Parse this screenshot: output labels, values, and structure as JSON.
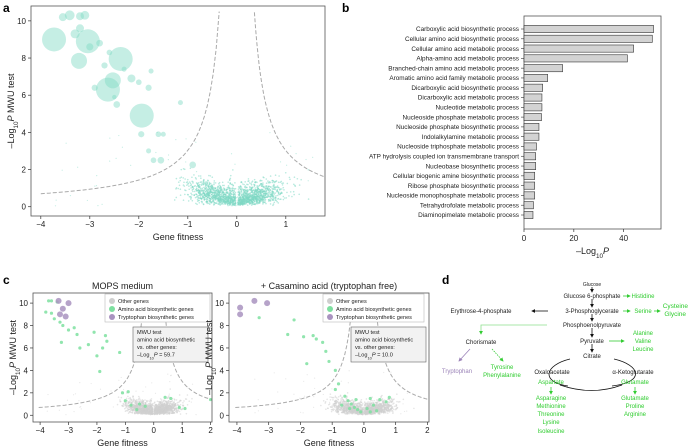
{
  "panel_labels": {
    "a": "a",
    "b": "b",
    "c": "c",
    "d": "d"
  },
  "colors": {
    "teal": "#7fd9c4",
    "green": "#7ee0a0",
    "purple": "#a993c0",
    "gray": "#cfcfcf",
    "bar": "#d3d3d3",
    "path_green": "#33cc33",
    "path_purple": "#9b83b8"
  },
  "ylabel": {
    "prefix": "–Log",
    "sub": "10",
    "var": "P",
    "suffix": " MWU test"
  },
  "chart_data": [
    {
      "id": "a",
      "type": "scatter",
      "xlabel": "Gene fitness",
      "xlim": [
        -4.2,
        1.8
      ],
      "ylim": [
        -0.5,
        10.8
      ],
      "xticks": [
        -4,
        -3,
        -2,
        -1,
        0,
        1
      ],
      "yticks": [
        0,
        2,
        4,
        6,
        8,
        10
      ],
      "threshold_curves": "dashed",
      "bubbles": [
        {
          "x": -3.73,
          "y": 9.0,
          "size": 9
        },
        {
          "x": -3.04,
          "y": 8.9,
          "size": 9
        },
        {
          "x": -2.37,
          "y": 7.95,
          "size": 9
        },
        {
          "x": -2.63,
          "y": 6.3,
          "size": 9
        },
        {
          "x": -1.94,
          "y": 4.9,
          "size": 9
        },
        {
          "x": -3.22,
          "y": 7.85,
          "size": 4
        },
        {
          "x": -2.53,
          "y": 6.8,
          "size": 4
        },
        {
          "x": -3.55,
          "y": 10.2,
          "size": 1
        },
        {
          "x": -3.41,
          "y": 10.3,
          "size": 1.5
        },
        {
          "x": -3.2,
          "y": 10.25,
          "size": 1
        },
        {
          "x": -3.1,
          "y": 10.3,
          "size": 1.2
        },
        {
          "x": -3.3,
          "y": 9.3,
          "size": 1.3
        },
        {
          "x": -3.2,
          "y": 9.6,
          "size": 1
        },
        {
          "x": -3.0,
          "y": 8.6,
          "size": 0.8
        },
        {
          "x": -2.8,
          "y": 8.8,
          "size": 0.7
        },
        {
          "x": -2.7,
          "y": 7.6,
          "size": 0.6
        },
        {
          "x": -2.6,
          "y": 8.3,
          "size": 0.5
        },
        {
          "x": -2.9,
          "y": 6.4,
          "size": 0.6
        },
        {
          "x": -2.45,
          "y": 5.5,
          "size": 0.7
        },
        {
          "x": -2.15,
          "y": 6.9,
          "size": 1
        },
        {
          "x": -2.0,
          "y": 6.7,
          "size": 0.5
        },
        {
          "x": -1.8,
          "y": 6.4,
          "size": 0.6
        },
        {
          "x": -1.75,
          "y": 7.3,
          "size": 0.4
        },
        {
          "x": -1.95,
          "y": 3.9,
          "size": 0.6
        },
        {
          "x": -1.6,
          "y": 3.9,
          "size": 0.5
        },
        {
          "x": -1.5,
          "y": 3.9,
          "size": 0.4
        },
        {
          "x": -1.8,
          "y": 3.0,
          "size": 0.4
        },
        {
          "x": -1.7,
          "y": 2.5,
          "size": 0.5
        },
        {
          "x": -1.55,
          "y": 2.5,
          "size": 0.7
        },
        {
          "x": -1.15,
          "y": 5.6,
          "size": 0.4
        },
        {
          "x": -0.9,
          "y": 2.25,
          "size": 0.7
        },
        {
          "x": -2.5,
          "y": 5.9,
          "size": 0.3
        },
        {
          "x": -2.3,
          "y": 7.4,
          "size": 0.4
        }
      ]
    },
    {
      "id": "b",
      "type": "bar",
      "orientation": "horizontal",
      "xlabel": {
        "prefix": "–Log",
        "sub": "10",
        "var": "P"
      },
      "xlim": [
        0,
        55
      ],
      "xticks": [
        0,
        20,
        40
      ],
      "categories": [
        "Carboxylic acid biosynthetic process",
        "Cellular amino acid biosynthetic process",
        "Cellular amino acid metabolic process",
        "Alpha-amino acid metabolic process",
        "Branched-chain amino acid metabolic process",
        "Aromatic amino acid family metabolic process",
        "Dicarboxylic acid biosynthetic process",
        "Dicarboxylic acid metabolic process",
        "Nucleotide metabolic process",
        "Nucleoside phosphate metabolic process",
        "Nucleoside phosphate biosynthetic process",
        "Indolalkylamine metabolic process",
        "Nucleoside triphosphate metabolic process",
        "ATP hydrolysis coupled ion transmembrane transport",
        "Nucleobase biosynthetic process",
        "Cellular biogenic amine biosynthetic process",
        "Ribose phosphate biosynthetic process",
        "Nucleoside monophosphate metabolic process",
        "Tetrahydrofolate metabolic process",
        "Diaminopimelate metabolic process"
      ],
      "values": [
        52,
        51.5,
        44,
        41.5,
        15.5,
        9.5,
        7.5,
        7.2,
        7.2,
        7,
        6,
        6,
        5,
        4.7,
        4.7,
        4.3,
        4.3,
        4.3,
        3.8,
        3.6
      ]
    },
    {
      "id": "c1",
      "type": "scatter",
      "title": "MOPS medium",
      "xlabel": "Gene fitness",
      "xlim": [
        -4.25,
        2.05
      ],
      "ylim": [
        -0.6,
        10.9
      ],
      "xticks": [
        -4,
        -3,
        -2,
        -1,
        0,
        1,
        2
      ],
      "yticks": [
        0,
        2,
        4,
        6,
        8,
        10
      ],
      "legend": [
        "Other genes",
        "Amino acid biosynthetic genes",
        "Tryptophan biosynthetic genes"
      ],
      "stat_box": [
        "MWU test",
        "amino acid biosynthetic",
        "vs. other genes:"
      ],
      "stat_value": {
        "prefix": "–Log",
        "sub": "10",
        "var": "P",
        "suffix": " = 59.7"
      },
      "amino_acid_points": [
        [
          -3.7,
          10.2
        ],
        [
          -3.6,
          10.2
        ],
        [
          -3.4,
          10.1
        ],
        [
          -3.8,
          9.2
        ],
        [
          -3.6,
          9.1
        ],
        [
          -3.5,
          8.6
        ],
        [
          -3.3,
          8.3
        ],
        [
          -3.2,
          8.0
        ],
        [
          -3.0,
          7.6
        ],
        [
          -2.8,
          7.8
        ],
        [
          -2.7,
          7.2
        ],
        [
          -3.25,
          6.5
        ],
        [
          -2.6,
          6.0
        ],
        [
          -2.3,
          6.3
        ],
        [
          -2.1,
          7.4
        ],
        [
          -1.7,
          7.1
        ],
        [
          -1.65,
          6.6
        ],
        [
          -1.8,
          6.0
        ],
        [
          -2.0,
          5.3
        ],
        [
          -1.2,
          5.6
        ],
        [
          -1.9,
          3.9
        ],
        [
          -1.0,
          1.3
        ],
        [
          -0.8,
          0.9
        ],
        [
          -0.5,
          1.0
        ],
        [
          -0.3,
          0.8
        ],
        [
          -0.6,
          0.5
        ],
        [
          0.4,
          1.6
        ],
        [
          0.6,
          1.5
        ],
        [
          0.9,
          0.7
        ],
        [
          1.1,
          0.6
        ],
        [
          2.0,
          1.4
        ],
        [
          -1.1,
          2.0
        ],
        [
          -0.9,
          2.1
        ]
      ],
      "tryptophan_points": [
        [
          -3.35,
          10.2
        ],
        [
          -3.0,
          10.0
        ],
        [
          -3.2,
          9.5
        ],
        [
          -3.3,
          9.0
        ],
        [
          -3.1,
          8.8
        ]
      ]
    },
    {
      "id": "c2",
      "type": "scatter",
      "title": "+ Casamino acid (tryptophan free)",
      "xlabel": "Gene fitness",
      "xlim": [
        -4.25,
        2.05
      ],
      "ylim": [
        -0.6,
        10.9
      ],
      "xticks": [
        -4,
        -3,
        -2,
        -1,
        0,
        1,
        2
      ],
      "yticks": [
        0,
        2,
        4,
        6,
        8,
        10
      ],
      "legend": [
        "Other genes",
        "Amino acid biosynthetic genes",
        "Tryptophan biosynthetic genes"
      ],
      "stat_box": [
        "MWU test",
        "amino acid biosynthetic",
        "vs. other genes:"
      ],
      "stat_value": {
        "prefix": "–Log",
        "sub": "10",
        "var": "P",
        "suffix": " = 10.0"
      },
      "amino_acid_points": [
        [
          -3.3,
          8.7
        ],
        [
          -2.2,
          8.5
        ],
        [
          -2.4,
          7.2
        ],
        [
          -1.9,
          7.0
        ],
        [
          -1.6,
          7.1
        ],
        [
          -1.5,
          6.8
        ],
        [
          -1.3,
          6.5
        ],
        [
          -1.2,
          5.7
        ],
        [
          -1.1,
          4.8
        ],
        [
          -1.8,
          4.6
        ],
        [
          -0.9,
          4.0
        ],
        [
          -0.8,
          2.8
        ],
        [
          -0.9,
          2.3
        ],
        [
          -0.6,
          1.7
        ],
        [
          -0.5,
          1.3
        ],
        [
          -0.4,
          1.0
        ],
        [
          -0.3,
          0.7
        ],
        [
          -0.2,
          0.5
        ],
        [
          -0.1,
          0.3
        ],
        [
          -0.7,
          0.9
        ],
        [
          -0.45,
          0.6
        ],
        [
          0.2,
          0.3
        ],
        [
          0.3,
          0.9
        ],
        [
          0.5,
          1.4
        ],
        [
          0.7,
          1.2
        ],
        [
          0.8,
          1.6
        ],
        [
          0.2,
          1.5
        ],
        [
          0.1,
          0.6
        ],
        [
          0.4,
          0.4
        ],
        [
          -0.25,
          1.4
        ]
      ],
      "tryptophan_points": [
        [
          -3.9,
          9.6
        ],
        [
          -3.9,
          9.0
        ],
        [
          -3.45,
          10.2
        ],
        [
          -3.05,
          10.0
        ]
      ]
    }
  ],
  "pathway": {
    "nodes": {
      "glucose": "Glucose",
      "g6p": "Glucose 6-phosphate",
      "pg3": "3-Phosphoglycerate",
      "pep": "Phosphoenolpyruvate",
      "pyruvate": "Pyruvate",
      "citrate": "Citrate",
      "oaa": "Oxaloacetate",
      "akg": "α-Ketoglutarate",
      "e4p": "Erythrose-4-phosphate",
      "chorismate": "Chorismate"
    },
    "products": {
      "histidine": "Histidine",
      "serine": "Serine",
      "cysteine": "Cysteine",
      "glycine": "Glycine",
      "alanine": "Alanine",
      "valine": "Valine",
      "leucine": "Leucine",
      "tryptophan": "Tryptophan",
      "tyrosine": "Tyrosine",
      "phenylalanine": "Phenylalanine",
      "aspartate": "Aspartate",
      "asparagine": "Asparagine",
      "methionine": "Methionine",
      "threonine": "Threonine",
      "lysine": "Lysine",
      "isoleucine": "Isoleucine",
      "glutamate": "Glutamate",
      "glutamate2": "Glutamate",
      "proline": "Proline",
      "arginine": "Arginine"
    }
  }
}
